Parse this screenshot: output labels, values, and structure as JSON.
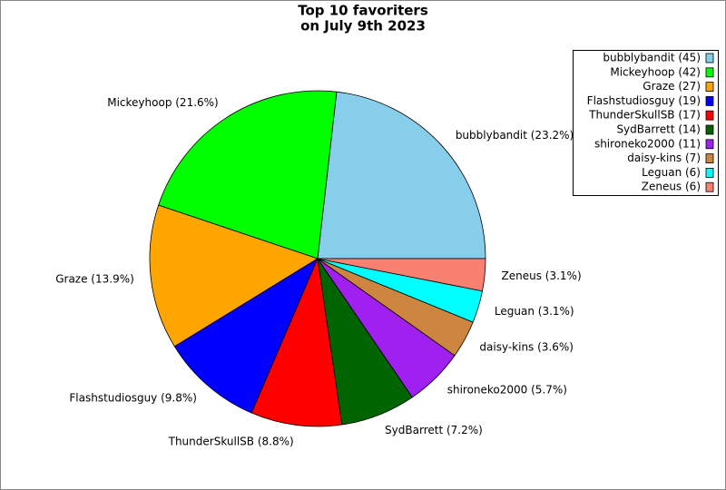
{
  "chart_data": {
    "type": "pie",
    "title": [
      "Top 10 favoriters",
      "on July 9th 2023"
    ],
    "categories": [
      "bubblybandit",
      "Mickeyhoop",
      "Graze",
      "Flashstudiosguy",
      "ThunderSkullSB",
      "SydBarrett",
      "shironeko2000",
      "daisy-kins",
      "Leguan",
      "Zeneus"
    ],
    "values": [
      45,
      42,
      27,
      19,
      17,
      14,
      11,
      7,
      6,
      6
    ],
    "slice_labels": [
      "bubblybandit (23.2%)",
      "Mickeyhoop (21.6%)",
      "Graze (13.9%)",
      "Flashstudiosguy (9.8%)",
      "ThunderSkullSB (8.8%)",
      "SydBarrett (7.2%)",
      "shironeko2000 (5.7%)",
      "daisy-kins (3.6%)",
      "Leguan (3.1%)",
      "Zeneus (3.1%)"
    ],
    "legend_labels": [
      "bubblybandit (45)",
      "Mickeyhoop (42)",
      "Graze (27)",
      "Flashstudiosguy (19)",
      "ThunderSkullSB (17)",
      "SydBarrett (14)",
      "shironeko2000 (11)",
      "daisy-kins (7)",
      "Leguan (6)",
      "Zeneus (6)"
    ],
    "colors": [
      "#87ceeb",
      "#00ff00",
      "#ffa500",
      "#0000ff",
      "#ff0000",
      "#006400",
      "#a020f0",
      "#cd853f",
      "#00ffff",
      "#fa8072"
    ],
    "legend": "upper right"
  }
}
